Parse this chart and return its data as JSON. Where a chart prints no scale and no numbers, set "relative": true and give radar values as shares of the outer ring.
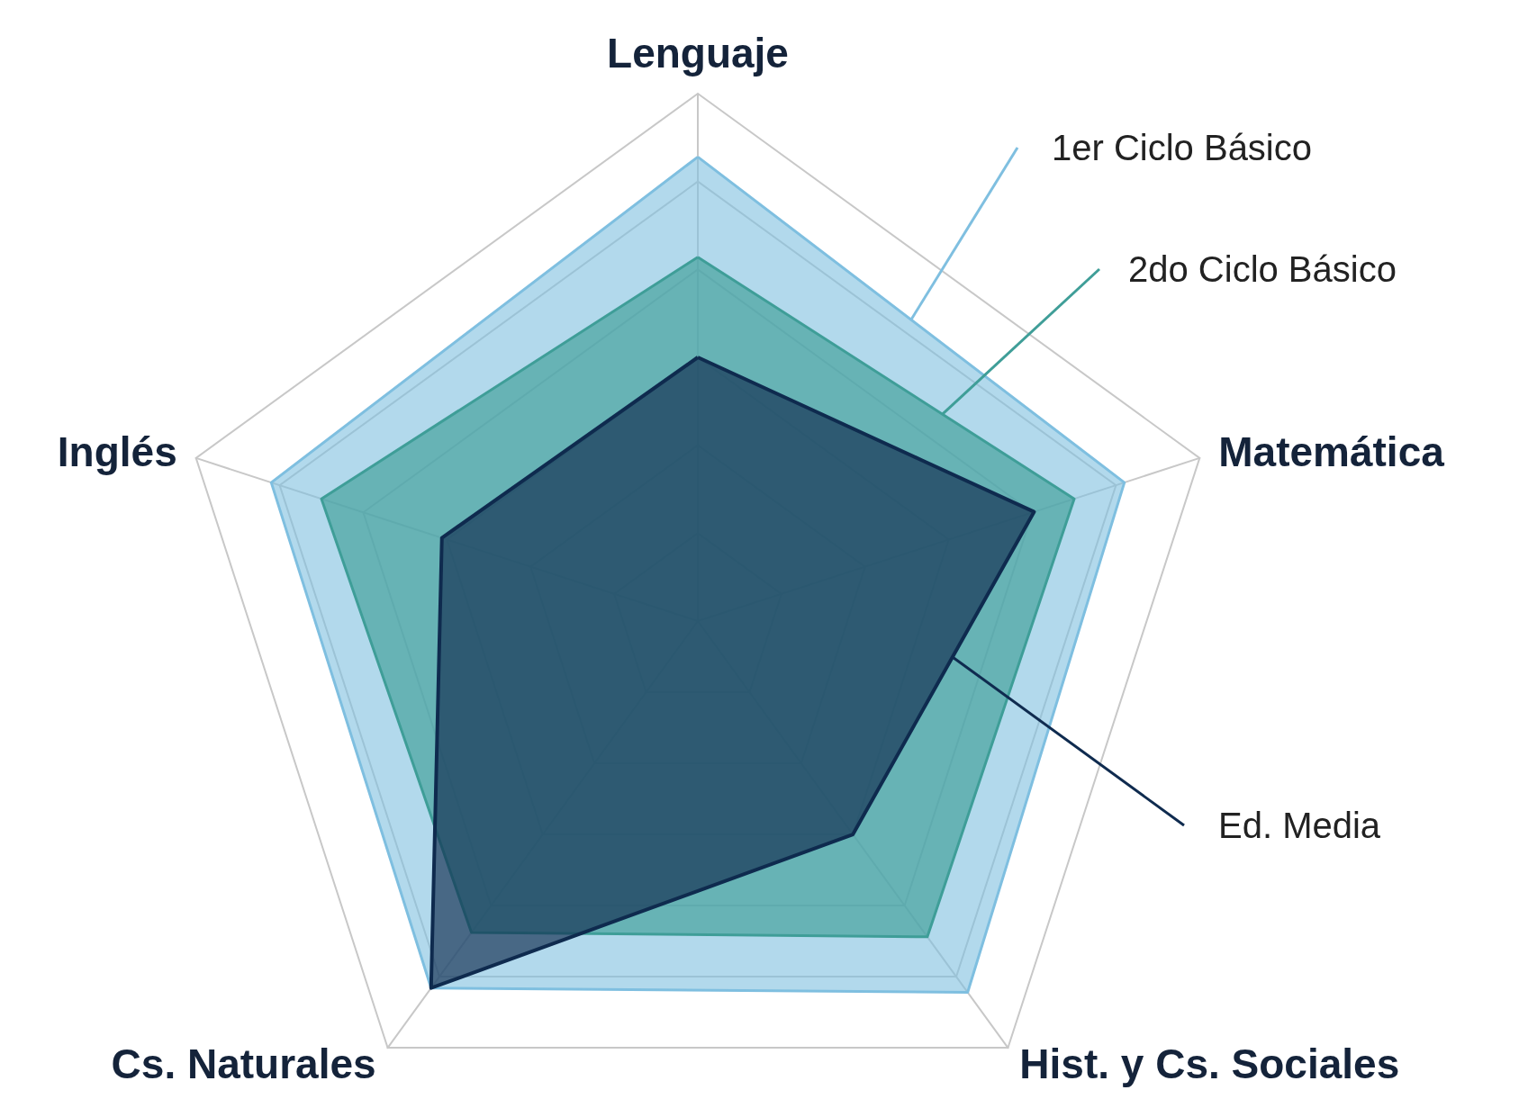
{
  "chart_data": {
    "type": "radar",
    "relative": true,
    "categories": [
      "Lenguaje",
      "Matemática",
      "Hist. y Cs. Sociales",
      "Cs. Naturales",
      "Inglés"
    ],
    "series": [
      {
        "name": "1er Ciclo Básico",
        "color": "#7fbfe0",
        "values": [
          0.88,
          0.85,
          0.87,
          0.86,
          0.85
        ]
      },
      {
        "name": "2do Ciclo Básico",
        "color": "#3f9e98",
        "values": [
          0.69,
          0.75,
          0.74,
          0.73,
          0.75
        ]
      },
      {
        "name": "Ed. Media",
        "color": "#0f2b4f",
        "values": [
          0.5,
          0.67,
          0.5,
          0.86,
          0.51
        ]
      }
    ]
  }
}
